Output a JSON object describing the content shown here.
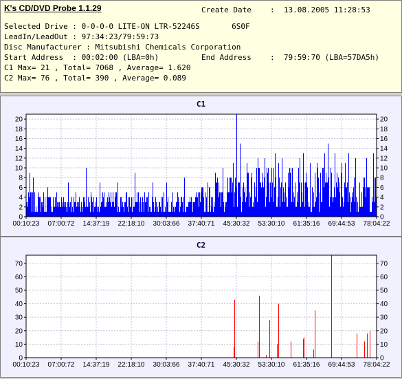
{
  "header": {
    "app_title": "K's CD/DVD Probe 1.1.29",
    "create_date_label": "Create Date",
    "create_date_value": ":  13.08.2005 11:28:53",
    "selected_drive": "Selected Drive : 0-0-0-0 LITE-ON LTR-52246S       6S0F",
    "leadin_leadout": "LeadIn/LeadOut : 97:34:23/79:59:73",
    "disc_manufacturer": "Disc Manufacturer : Mitsubishi Chemicals Corporation",
    "start_address": "Start Address  : 00:02:00 (LBA=0h)",
    "end_address_label": "End Address",
    "end_address_value": ":  79:59:70 (LBA=57DA5h)",
    "c1_summary": "C1 Max= 21 , Total= 7068 , Average= 1.620",
    "c2_summary": "C2 Max= 76 , Total= 390 , Average= 0.089"
  },
  "chart_data": [
    {
      "type": "bar",
      "title": "C1",
      "color": "#0000ff",
      "x_tick_labels": [
        "00:10:23",
        "07:00:72",
        "14:37:19",
        "22:18:10",
        "30:03:66",
        "37:40:71",
        "45:30:32",
        "53:30:10",
        "61:35:16",
        "69:44:53",
        "78:04:22"
      ],
      "ylim": [
        0,
        21
      ],
      "y_ticks": [
        0,
        2,
        4,
        6,
        8,
        10,
        12,
        14,
        16,
        18,
        20
      ],
      "x_range": [
        0,
        100
      ],
      "baseline_profile": [
        [
          0,
          3
        ],
        [
          10,
          3
        ],
        [
          20,
          3
        ],
        [
          30,
          3
        ],
        [
          40,
          3
        ],
        [
          48,
          3
        ],
        [
          55,
          5
        ],
        [
          60,
          5
        ],
        [
          65,
          6
        ],
        [
          75,
          6
        ],
        [
          85,
          6
        ],
        [
          95,
          5
        ],
        [
          100,
          5
        ]
      ],
      "spikes": [
        [
          1,
          9
        ],
        [
          2,
          8
        ],
        [
          6,
          6
        ],
        [
          12,
          7
        ],
        [
          17,
          10
        ],
        [
          21,
          7
        ],
        [
          26,
          7
        ],
        [
          31,
          9
        ],
        [
          36,
          7
        ],
        [
          40,
          7
        ],
        [
          45,
          8
        ],
        [
          49,
          5
        ],
        [
          54,
          9
        ],
        [
          56,
          10
        ],
        [
          59,
          11
        ],
        [
          60,
          21
        ],
        [
          61,
          15
        ],
        [
          63,
          11
        ],
        [
          66,
          12
        ],
        [
          68,
          12
        ],
        [
          71,
          13
        ],
        [
          72,
          11
        ],
        [
          73,
          12
        ],
        [
          75,
          10
        ],
        [
          78,
          12
        ],
        [
          79,
          13
        ],
        [
          81,
          11
        ],
        [
          83,
          11
        ],
        [
          85,
          13
        ],
        [
          86,
          15
        ],
        [
          88,
          13
        ],
        [
          90,
          11
        ],
        [
          91,
          11
        ],
        [
          92,
          13
        ],
        [
          94,
          12
        ],
        [
          97,
          12
        ],
        [
          99,
          13
        ]
      ]
    },
    {
      "type": "bar",
      "title": "C2",
      "color": "#ff0000",
      "x_tick_labels": [
        "00:10:23",
        "07:00:72",
        "14:37:19",
        "22:18:10",
        "30:03:66",
        "37:40:71",
        "45:30:32",
        "53:30:10",
        "61:35:16",
        "69:44:53",
        "78:04:22"
      ],
      "ylim": [
        0,
        76
      ],
      "y_ticks": [
        0,
        10,
        20,
        30,
        40,
        50,
        60,
        70
      ],
      "x_range": [
        0,
        100
      ],
      "spikes": [
        [
          59.5,
          43
        ],
        [
          59.3,
          8
        ],
        [
          66.5,
          46
        ],
        [
          66.0,
          12
        ],
        [
          68.5,
          2
        ],
        [
          69.5,
          28
        ],
        [
          72,
          40
        ],
        [
          71.5,
          10
        ],
        [
          75.5,
          12
        ],
        [
          79,
          14
        ],
        [
          79.3,
          15
        ],
        [
          82.3,
          35
        ],
        [
          82.0,
          6
        ],
        [
          87,
          76
        ],
        [
          94.3,
          18
        ],
        [
          96.5,
          12
        ],
        [
          98,
          20
        ],
        [
          97.3,
          18
        ]
      ]
    }
  ]
}
